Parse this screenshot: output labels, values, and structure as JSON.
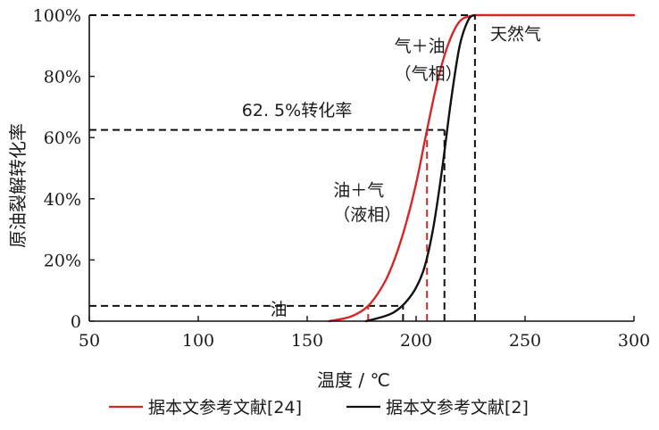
{
  "chart_data": {
    "type": "line",
    "xlabel": "温度 / ℃",
    "ylabel": "原油裂解转化率",
    "xlim": [
      50,
      300
    ],
    "ylim": [
      0,
      100
    ],
    "xticks": [
      50,
      100,
      150,
      200,
      250,
      300
    ],
    "yticks": [
      0,
      20,
      40,
      60,
      80,
      100
    ],
    "ytick_labels": [
      "0",
      "20%",
      "40%",
      "60%",
      "80%",
      "100%"
    ],
    "grid": false,
    "legend_position": "bottom",
    "series": [
      {
        "name": "据本文参考文献[24]",
        "color": "#d62728",
        "x": [
          160,
          170,
          178,
          185,
          190,
          195,
          200,
          205,
          210,
          215,
          220,
          225,
          228,
          235,
          250,
          275,
          300
        ],
        "y": [
          0,
          1.5,
          5,
          12,
          20,
          31,
          45,
          62.5,
          79,
          91,
          98,
          99.7,
          100,
          100,
          100,
          100,
          100
        ]
      },
      {
        "name": "据本文参考文献[2]",
        "color": "#111111",
        "x": [
          177,
          185,
          190,
          195,
          200,
          204,
          208,
          212,
          216,
          220,
          224,
          227
        ],
        "y": [
          0,
          1.5,
          3,
          6,
          11,
          18,
          31,
          50,
          72,
          90,
          98.5,
          100
        ]
      }
    ],
    "annotations": [
      {
        "text": "气＋油",
        "x": 190,
        "y": 88
      },
      {
        "text": "（气相）",
        "x": 190,
        "y": 79
      },
      {
        "text": "62. 5%转化率",
        "x": 120,
        "y": 67
      },
      {
        "text": "油＋气",
        "x": 162,
        "y": 41
      },
      {
        "text": "（液相）",
        "x": 162,
        "y": 33
      },
      {
        "text": "油",
        "x": 133,
        "y": 2
      },
      {
        "text": "天然气",
        "x": 234,
        "y": 92
      }
    ],
    "reference_lines": {
      "horizontal": [
        {
          "y": 100,
          "x_end": 227,
          "color": "#111111"
        },
        {
          "y": 62.5,
          "x_end": 213,
          "color": "#111111"
        },
        {
          "y": 5,
          "x_end": 194,
          "color": "#111111"
        }
      ],
      "vertical": [
        {
          "x": 178,
          "y_end": 5,
          "color": "#d62728"
        },
        {
          "x": 194,
          "y_end": 5,
          "color": "#111111"
        },
        {
          "x": 205,
          "y_end": 62.5,
          "color": "#d62728"
        },
        {
          "x": 213,
          "y_end": 62.5,
          "color": "#111111"
        },
        {
          "x": 227,
          "y_end": 100,
          "color": "#111111"
        }
      ]
    }
  }
}
